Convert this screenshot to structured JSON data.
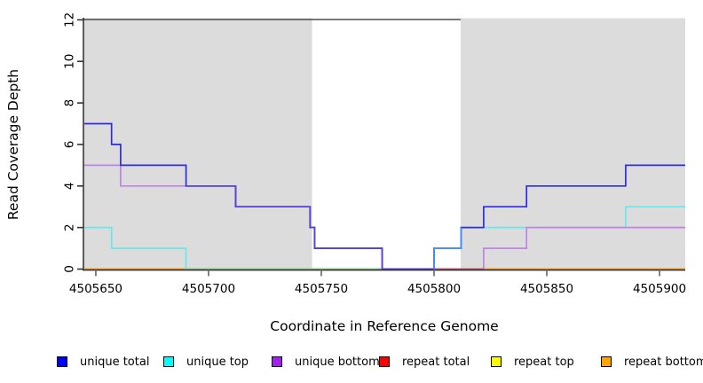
{
  "chart_data": {
    "type": "line",
    "subtype": "step-coverage-plot",
    "title": "",
    "xlabel": "Coordinate in Reference Genome",
    "ylabel": "Read Coverage Depth",
    "xlim": [
      4505644.9,
      4505911.4
    ],
    "ylim": [
      0,
      12
    ],
    "x_ticks": [
      4505650,
      4505700,
      4505750,
      4505800,
      4505850,
      4505900
    ],
    "y_ticks": [
      0,
      2,
      4,
      6,
      8,
      10,
      12
    ],
    "grid": false,
    "legend_position": "bottom",
    "highlight_regions": [
      {
        "x1": 4505644.9,
        "x2": 4505745.9,
        "color": "#dcdcdc"
      },
      {
        "x1": 4505811.8,
        "x2": 4505911.4,
        "color": "#dcdcdc"
      }
    ],
    "series": [
      {
        "name": "repeat total",
        "color": "#ff0000",
        "steps": [
          [
            4505644.9,
            0
          ],
          [
            4505911.4,
            0
          ]
        ]
      },
      {
        "name": "repeat top",
        "color": "#f5f533",
        "steps": [
          [
            4505644.9,
            0
          ],
          [
            4505911.4,
            0
          ]
        ]
      },
      {
        "name": "repeat bottom",
        "color": "#ff981e",
        "steps": [
          [
            4505644.9,
            0
          ],
          [
            4505911.4,
            0
          ]
        ]
      },
      {
        "name": "unique top",
        "color": "#68e8e8",
        "steps": [
          [
            4505644.9,
            2
          ],
          [
            4505657,
            1
          ],
          [
            4505690,
            0
          ],
          [
            4505800,
            1
          ],
          [
            4505812,
            2
          ],
          [
            4505885,
            3
          ],
          [
            4505911.4,
            3
          ]
        ]
      },
      {
        "name": "unique bottom",
        "color": "#bf84e4",
        "steps": [
          [
            4505644.9,
            5
          ],
          [
            4505661,
            4
          ],
          [
            4505712,
            3
          ],
          [
            4505745,
            2
          ],
          [
            4505747,
            1
          ],
          [
            4505777,
            0
          ],
          [
            4505822,
            1
          ],
          [
            4505841,
            2
          ],
          [
            4505911.4,
            2
          ]
        ]
      },
      {
        "name": "unique total",
        "color": "#2d2ddd",
        "steps": [
          [
            4505644.9,
            7
          ],
          [
            4505657,
            6
          ],
          [
            4505661,
            5
          ],
          [
            4505690,
            4
          ],
          [
            4505712,
            3
          ],
          [
            4505745,
            2
          ],
          [
            4505747,
            1
          ],
          [
            4505777,
            0
          ],
          [
            4505800,
            1
          ],
          [
            4505812,
            2
          ],
          [
            4505822,
            3
          ],
          [
            4505841,
            4
          ],
          [
            4505885,
            5
          ],
          [
            4505911.4,
            5
          ]
        ]
      }
    ],
    "overlap_blend_segments": [
      {
        "name": "unique-top-over-repeat-baseline",
        "color": "#8ecb8e",
        "points": [
          [
            4505690,
            0
          ],
          [
            4505777,
            0
          ]
        ]
      },
      {
        "name": "unique-total-over-unique-bottom",
        "color": "#5a3fd4",
        "points": [
          [
            4505690,
            4
          ],
          [
            4505712,
            4
          ],
          [
            4505712,
            3
          ],
          [
            4505745,
            3
          ],
          [
            4505745,
            2
          ],
          [
            4505747,
            2
          ],
          [
            4505747,
            1
          ],
          [
            4505777,
            1
          ],
          [
            4505777,
            0
          ],
          [
            4505800,
            0
          ]
        ]
      },
      {
        "name": "unique-bottom-over-repeat-baseline",
        "color": "#c2556f",
        "points": [
          [
            4505800,
            0
          ],
          [
            4505822,
            0
          ]
        ]
      },
      {
        "name": "unique-total-over-unique-top",
        "color": "#4992f2",
        "points": [
          [
            4505800,
            0
          ],
          [
            4505800,
            1
          ],
          [
            4505812,
            1
          ],
          [
            4505812,
            2
          ]
        ]
      }
    ]
  },
  "legend": {
    "items": [
      {
        "label": "unique total",
        "color": "#0000ff"
      },
      {
        "label": "unique top",
        "color": "#00ffff"
      },
      {
        "label": "unique bottom",
        "color": "#a020f0"
      },
      {
        "label": "repeat total",
        "color": "#ff0000"
      },
      {
        "label": "repeat top",
        "color": "#ffff00"
      },
      {
        "label": "repeat bottom",
        "color": "#ffa500"
      }
    ]
  },
  "style_colors": {
    "plot_background": "#ffffff",
    "highlight_gray": "#dcdcdc",
    "axis_color": "#333333",
    "top_border_color": "#4d4d4d"
  }
}
